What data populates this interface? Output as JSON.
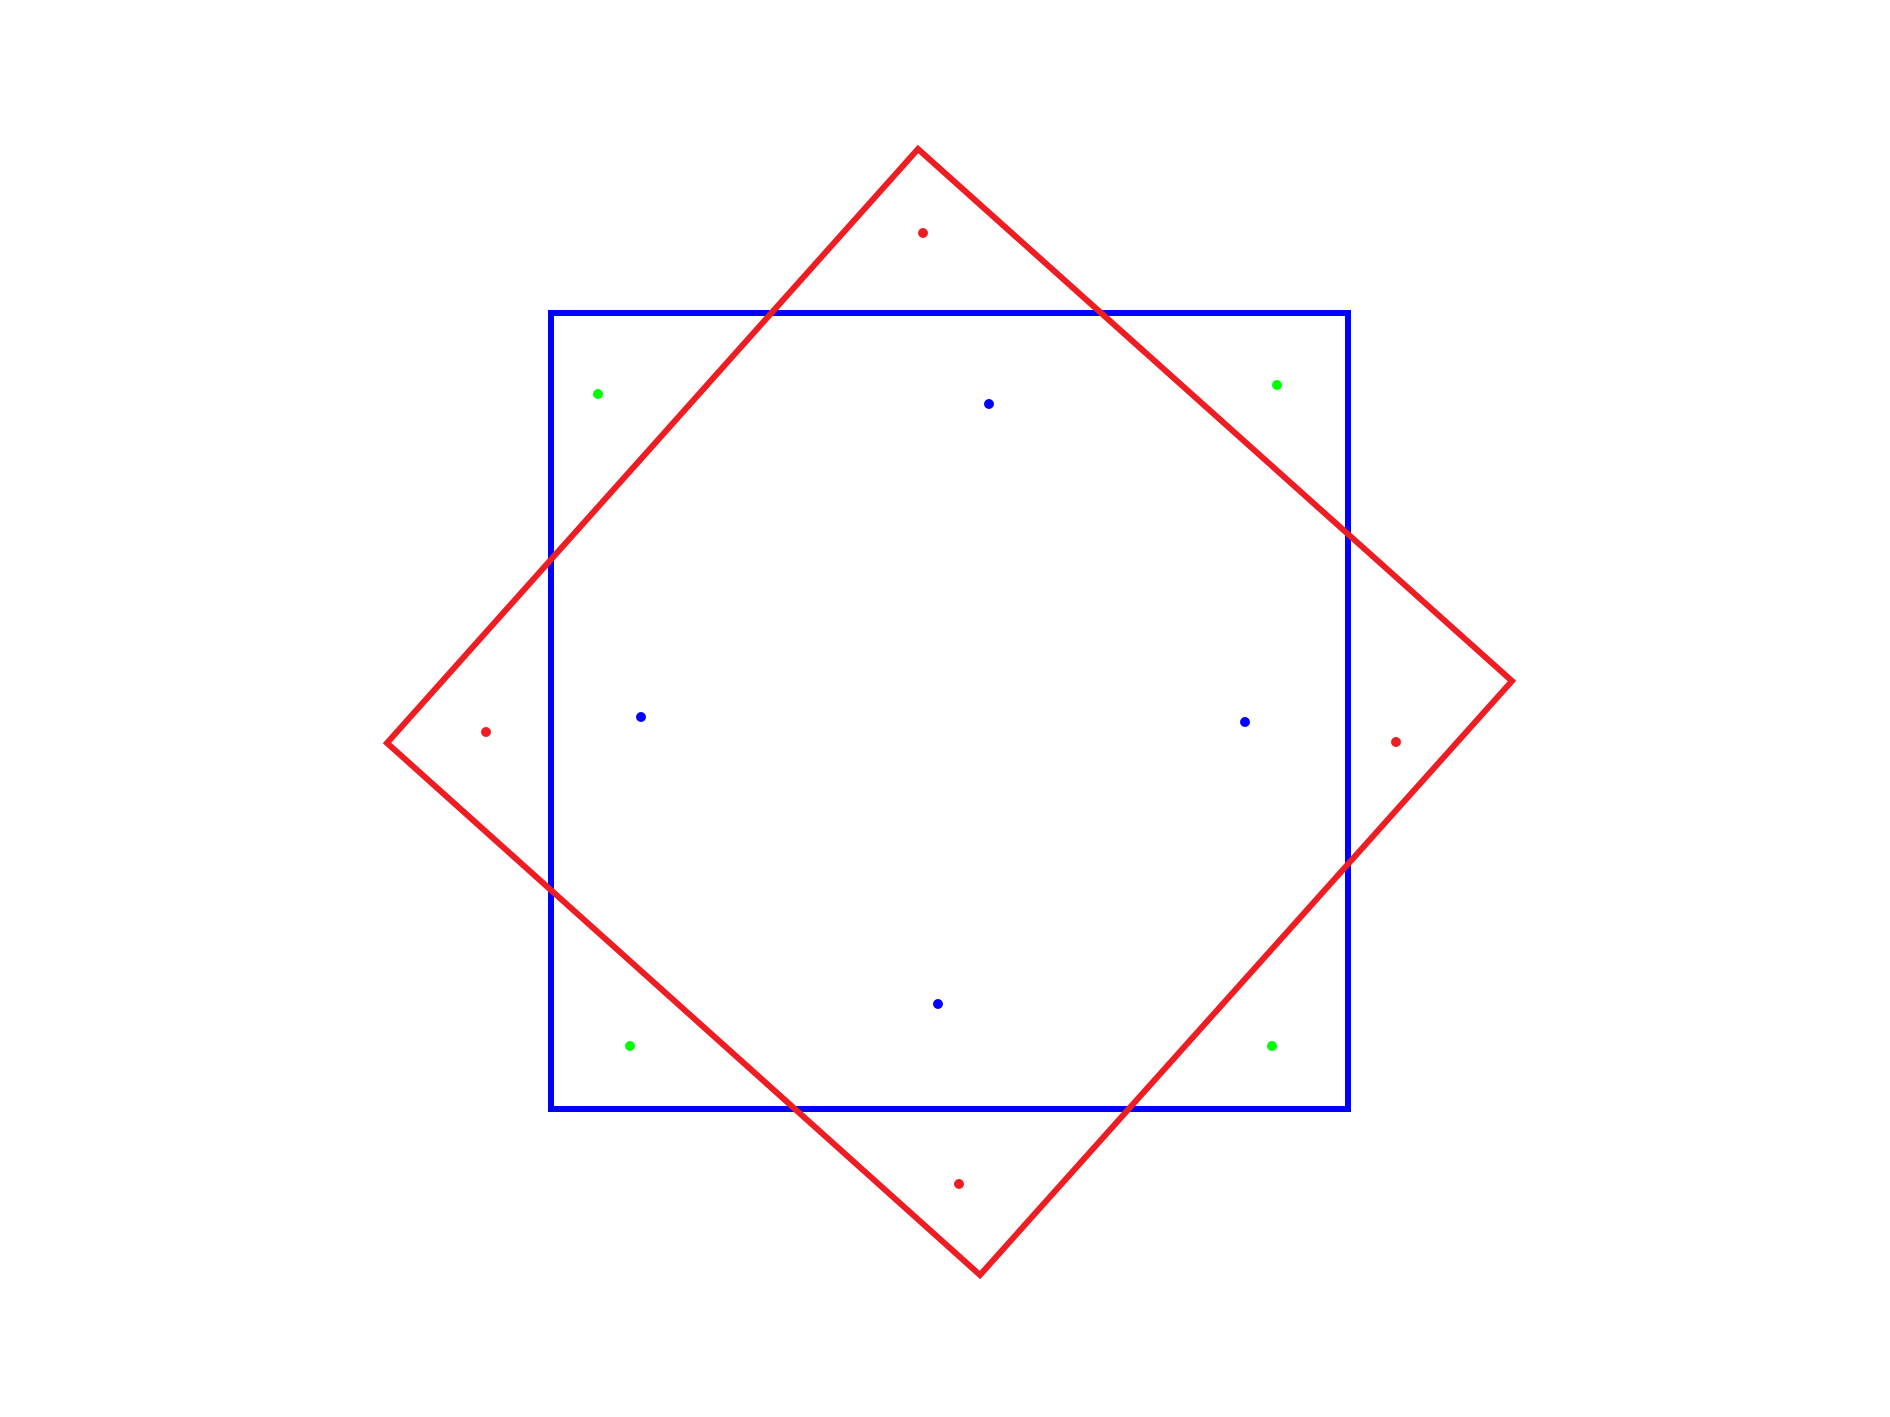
{
  "colors": {
    "background": "#ffffff",
    "square_stroke": "#0000ff",
    "diamond_stroke": "#ee1d23",
    "dot_red": "#ee1d23",
    "dot_blue": "#0000ff",
    "dot_green": "#00ff00"
  },
  "shapes": [
    {
      "name": "blue-square",
      "kind": "square",
      "color": "#0000ff"
    },
    {
      "name": "red-rotated-square",
      "kind": "rotated-square",
      "color": "#ee1d23"
    }
  ],
  "dot_groups": [
    {
      "name": "red-dots",
      "color": "#ee1d23",
      "count": 4
    },
    {
      "name": "blue-dots",
      "color": "#0000ff",
      "count": 4
    },
    {
      "name": "green-dots",
      "color": "#00ff00",
      "count": 4
    }
  ]
}
